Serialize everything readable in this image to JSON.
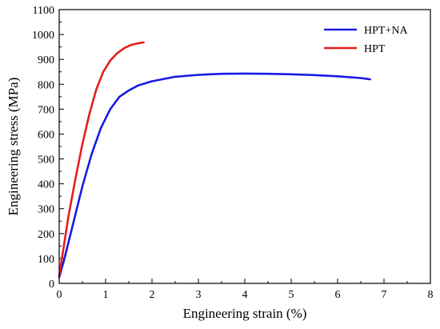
{
  "chart_data": {
    "type": "line",
    "xlabel": "Engineering strain (%)",
    "ylabel": "Engineering stress (MPa)",
    "xlim": [
      0,
      8
    ],
    "ylim": [
      0,
      1100
    ],
    "xticks": [
      "0",
      "1",
      "2",
      "3",
      "4",
      "5",
      "6",
      "7",
      "8"
    ],
    "yticks": [
      "0",
      "100",
      "200",
      "300",
      "400",
      "500",
      "600",
      "700",
      "800",
      "900",
      "1000",
      "1100"
    ],
    "legend_position": "top-right",
    "grid": false,
    "series": [
      {
        "name": "HPT+NA",
        "color": "#1a1ae6",
        "x": [
          0.0,
          0.1,
          0.3,
          0.5,
          0.7,
          0.9,
          1.1,
          1.3,
          1.5,
          1.7,
          2.0,
          2.5,
          3.0,
          3.5,
          4.0,
          4.5,
          5.0,
          5.5,
          6.0,
          6.5,
          6.7
        ],
        "y": [
          25,
          90,
          240,
          390,
          520,
          625,
          700,
          750,
          775,
          795,
          812,
          830,
          838,
          842,
          843,
          842,
          840,
          837,
          832,
          825,
          820
        ]
      },
      {
        "name": "HPT",
        "color": "#e61e1e",
        "x": [
          0.0,
          0.1,
          0.2,
          0.35,
          0.5,
          0.65,
          0.8,
          0.95,
          1.1,
          1.25,
          1.4,
          1.55,
          1.7,
          1.82
        ],
        "y": [
          30,
          150,
          270,
          420,
          560,
          680,
          780,
          850,
          895,
          925,
          945,
          958,
          965,
          968
        ]
      }
    ]
  }
}
